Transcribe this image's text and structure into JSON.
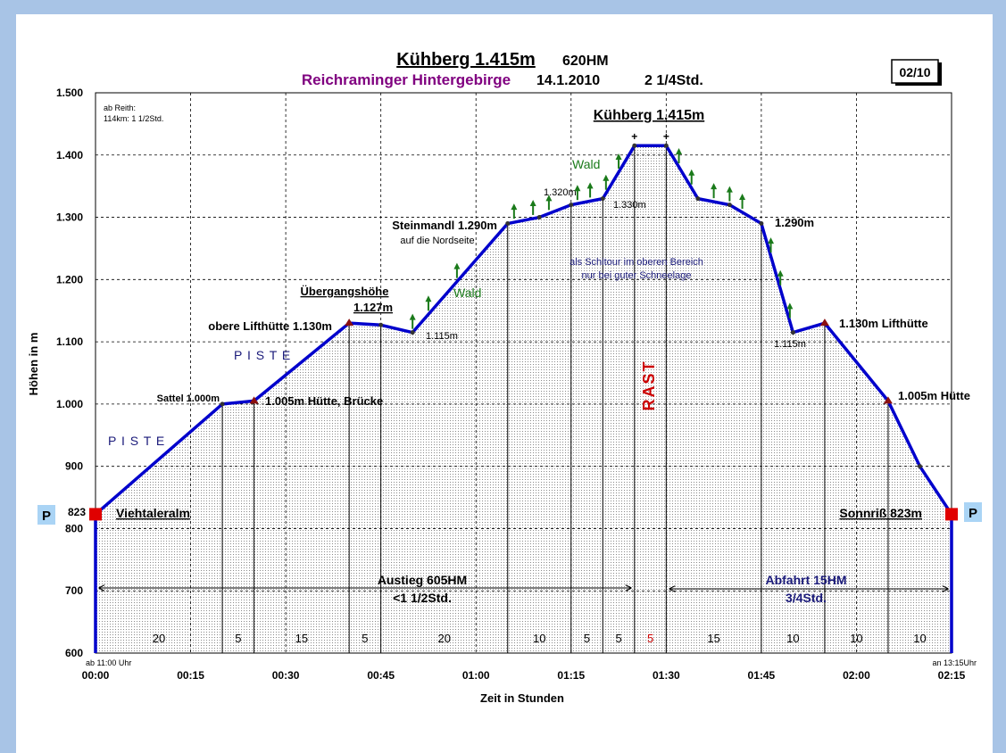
{
  "header": {
    "title": "Kühberg 1.415m",
    "hm": "620HM",
    "subtitle": "Reichraminger Hintergebirge",
    "date": "14.1.2010",
    "duration": "2 1/4Std.",
    "page_box": "02/10",
    "note_line1": "ab Reith:",
    "note_line2": "114km: 1 1/2Std."
  },
  "colors": {
    "profile": "#0000cc",
    "green_arrow": "#1a7a1a",
    "marker_red": "#cc0000",
    "purple": "#800080",
    "navy": "#1a1a7a",
    "rast": "#cc0000"
  },
  "chart_data": {
    "type": "area",
    "title": "Kühberg 1.415m",
    "xlabel": "Zeit in Stunden",
    "ylabel": "Höhen in m",
    "ylim": [
      600,
      1500
    ],
    "xlim": [
      0,
      135
    ],
    "yticks": [
      "1.500",
      "1.400",
      "1.300",
      "1.200",
      "1.100",
      "1.000",
      "900",
      "800",
      "700",
      "600"
    ],
    "yticks_values": [
      1500,
      1400,
      1300,
      1200,
      1100,
      1000,
      900,
      800,
      700,
      600
    ],
    "xticks": [
      "00:00",
      "00:15",
      "00:30",
      "00:45",
      "01:00",
      "01:15",
      "01:30",
      "01:45",
      "02:00",
      "02:15"
    ],
    "xticks_values": [
      0,
      15,
      30,
      45,
      60,
      75,
      90,
      105,
      120,
      135
    ],
    "grid": true,
    "series": [
      {
        "x": [
          0,
          20,
          25,
          40,
          45,
          50,
          65,
          70,
          75,
          80,
          85,
          90,
          95,
          100,
          105,
          110,
          115,
          125,
          130,
          135
        ],
        "y": [
          823,
          1000,
          1005,
          1130,
          1127,
          1115,
          1290,
          1300,
          1320,
          1330,
          1415,
          1415,
          1330,
          1320,
          1290,
          1115,
          1130,
          1005,
          900,
          823
        ]
      }
    ],
    "segment_dividers": [
      20,
      25,
      40,
      45,
      65,
      75,
      80,
      85,
      90,
      105,
      115,
      125
    ],
    "segment_labels": [
      {
        "x": 10,
        "text": "20"
      },
      {
        "x": 22.5,
        "text": "5"
      },
      {
        "x": 32.5,
        "text": "15"
      },
      {
        "x": 42.5,
        "text": "5"
      },
      {
        "x": 55,
        "text": "20"
      },
      {
        "x": 70,
        "text": "10"
      },
      {
        "x": 77.5,
        "text": "5"
      },
      {
        "x": 82.5,
        "text": "5"
      },
      {
        "x": 87.5,
        "text": "5",
        "red": true
      },
      {
        "x": 97.5,
        "text": "15"
      },
      {
        "x": 110,
        "text": "10"
      },
      {
        "x": 120,
        "text": "10"
      },
      {
        "x": 130,
        "text": "10"
      }
    ],
    "annotations": {
      "start_value": "823",
      "start_name": "Viehtaleralm",
      "end_name": "Sonnriß 823m",
      "parking": "P",
      "sattel": "Sattel 1.000m",
      "huette_bruecke": "1.005m Hütte, Brücke",
      "obere_lifthuette": "obere Lifthütte 1.130m",
      "uebergang1": "Übergangshöhe",
      "uebergang2": "1.127m",
      "low1": "1.115m",
      "steinmandl": "Steinmandl 1.290m",
      "nordseite": "auf die Nordseite",
      "p1320": "1.320m",
      "p1330": "1.330m",
      "summit": "Kühberg 1.415m",
      "cross": "+",
      "wald": "Wald",
      "piste": "P I S T E",
      "rast": "RAST",
      "schitour1": "als Schitour im oberen Bereich",
      "schitour2": "nur bei guter Schneelage",
      "p1290_right": "1.290m",
      "low2": "1.115m",
      "lifthuette_right": "1.130m Lifthütte",
      "huette_right": "1.005m Hütte",
      "aufstieg1": "Austieg 605HM",
      "aufstieg2": "<1 1/2Std.",
      "abfahrt1": "Abfahrt 15HM",
      "abfahrt2": "3/4Std.",
      "start_time": "ab 11:00 Uhr",
      "end_time": "an 13:15Uhr"
    }
  }
}
